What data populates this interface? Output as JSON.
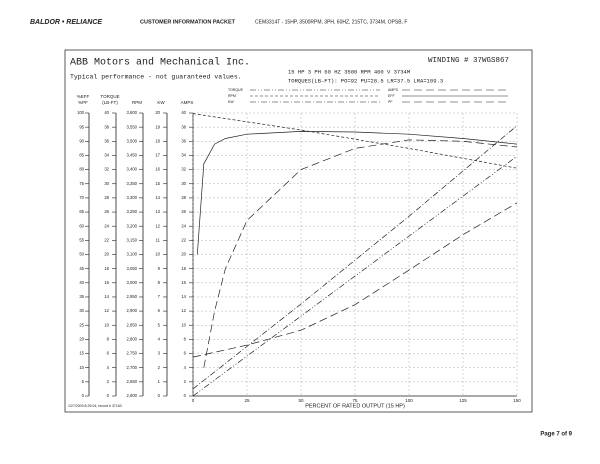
{
  "header": {
    "brand": "BALDOR • RELIANCE",
    "section": "CUSTOMER INFORMATION PACKET",
    "description": "CEM3314T - 15HP, 3500RPM, 3PH, 60HZ, 215TC, 3734M, OPSB, F"
  },
  "footer": {
    "page": "Page 7 of 9",
    "record": "1/27/2009 8:29:04, record # 37163"
  },
  "chart_data": {
    "type": "line",
    "company": "ABB Motors and Mechanical Inc.",
    "winding": "WINDING # 37WGS867",
    "subtitle": "Typical performance - not guaranteed values.",
    "specs": "15 HP  3 PH  60 HZ  3500 RPM  460 V  3734M",
    "torques": "TORQUES(LB-FT): PO=92  PU=28.5  LR=37.5  LRA=109.3",
    "xlabel": "PERCENT OF RATED OUTPUT (15 HP)",
    "xlim": [
      0,
      150
    ],
    "xticks": [
      0,
      25,
      50,
      75,
      100,
      125,
      150
    ],
    "grid": true,
    "axes": [
      {
        "label": [
          "%EFF",
          "%PF"
        ],
        "lim": [
          0,
          100
        ],
        "ticks": [
          0,
          5,
          10,
          15,
          20,
          25,
          30,
          35,
          40,
          45,
          50,
          55,
          60,
          65,
          70,
          75,
          80,
          85,
          90,
          95,
          100
        ]
      },
      {
        "label": [
          "TORQUE",
          "(LB-FT)"
        ],
        "lim": [
          0,
          40
        ],
        "ticks": [
          0,
          2,
          4,
          6,
          8,
          10,
          12,
          14,
          16,
          18,
          20,
          22,
          24,
          26,
          28,
          30,
          32,
          34,
          36,
          38,
          40
        ]
      },
      {
        "label": [
          "RPM"
        ],
        "lim": [
          2600,
          3600
        ],
        "ticks": [
          {
            "value": 2600,
            "label": "2,600"
          },
          {
            "value": 2650,
            "label": "2,650"
          },
          {
            "value": 2700,
            "label": "2,700"
          },
          {
            "value": 2750,
            "label": "2,750"
          },
          {
            "value": 2800,
            "label": "2,800"
          },
          {
            "value": 2850,
            "label": "2,850"
          },
          {
            "value": 2900,
            "label": "2,900"
          },
          {
            "value": 2950,
            "label": "2,950"
          },
          {
            "value": 3000,
            "label": "3,000"
          },
          {
            "value": 3050,
            "label": "3,050"
          },
          {
            "value": 3100,
            "label": "3,100"
          },
          {
            "value": 3150,
            "label": "3,150"
          },
          {
            "value": 3200,
            "label": "3,200"
          },
          {
            "value": 3250,
            "label": "3,250"
          },
          {
            "value": 3300,
            "label": "3,300"
          },
          {
            "value": 3350,
            "label": "3,350"
          },
          {
            "value": 3400,
            "label": "3,400"
          },
          {
            "value": 3450,
            "label": "3,450"
          },
          {
            "value": 3500,
            "label": "3,500"
          },
          {
            "value": 3550,
            "label": "3,550"
          },
          {
            "value": 3600,
            "label": "3,600"
          }
        ]
      },
      {
        "label": [
          "KW"
        ],
        "lim": [
          0,
          20
        ],
        "ticks": [
          0,
          1,
          2,
          3,
          4,
          5,
          6,
          7,
          8,
          9,
          10,
          11,
          12,
          13,
          14,
          15,
          16,
          17,
          18,
          19,
          20
        ]
      },
      {
        "label": [
          "AMPS"
        ],
        "lim": [
          0,
          40
        ],
        "ticks": [
          0,
          2,
          4,
          6,
          8,
          10,
          12,
          14,
          16,
          18,
          20,
          22,
          24,
          26,
          28,
          30,
          32,
          34,
          36,
          38,
          40
        ]
      }
    ],
    "series": [
      {
        "name": "TORQUE",
        "axis": 1,
        "line_style": "dashdotdot",
        "x": [
          0,
          50,
          100,
          150
        ],
        "values": [
          0,
          11.3,
          22.6,
          33.9
        ]
      },
      {
        "name": "RPM",
        "axis": 2,
        "line_style": "shortdash",
        "x": [
          0,
          50,
          100,
          150
        ],
        "values": [
          3598,
          3540,
          3475,
          3405
        ]
      },
      {
        "name": "KW",
        "axis": 3,
        "line_style": "dashdot",
        "x": [
          0,
          50,
          100,
          150
        ],
        "values": [
          0.5,
          6.5,
          12.7,
          19.1
        ]
      },
      {
        "name": "AMPS",
        "axis": 4,
        "line_style": "longdash",
        "x": [
          0,
          25,
          50,
          75,
          100,
          125,
          150
        ],
        "values": [
          5.5,
          7.2,
          9.3,
          12.9,
          17.8,
          22.8,
          27.3
        ]
      },
      {
        "name": "EFF",
        "axis": 0,
        "line_style": "solid",
        "x": [
          2,
          5,
          10,
          15,
          25,
          50,
          75,
          100,
          125,
          150
        ],
        "values": [
          50,
          82,
          89,
          91,
          92.5,
          93.5,
          93.3,
          92.5,
          91,
          89
        ]
      },
      {
        "name": "PF",
        "axis": 0,
        "line_style": "longdash",
        "x": [
          5,
          10,
          15,
          25,
          50,
          75,
          100,
          125,
          150
        ],
        "values": [
          10,
          30,
          45,
          62,
          80,
          87.5,
          90.5,
          90,
          88
        ]
      }
    ]
  }
}
